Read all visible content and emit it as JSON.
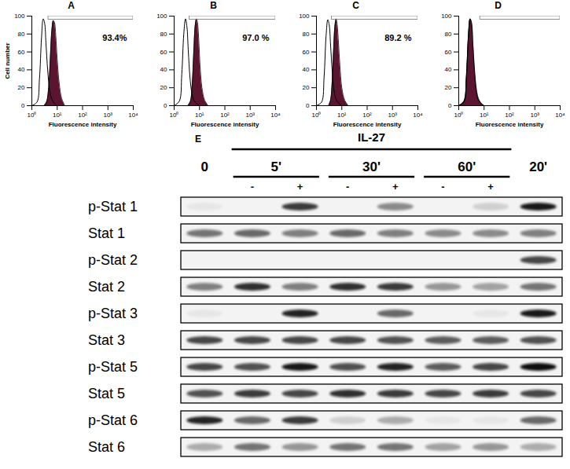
{
  "chart_data": [
    {
      "type": "area",
      "title": "A",
      "log": "x",
      "xlabel": "Fluorescence intensity",
      "ylabel": "Cell number",
      "xlim": [
        1,
        10000
      ],
      "xticks": [
        {
          "value": 1,
          "label": "10⁰"
        },
        {
          "value": 10,
          "label": "10¹"
        },
        {
          "value": 100,
          "label": "10²"
        },
        {
          "value": 1000,
          "label": "10³"
        },
        {
          "value": 10000,
          "label": "10⁴"
        }
      ],
      "ylim": [
        0,
        100
      ],
      "yticks": [
        0,
        20,
        40,
        60,
        80,
        100
      ],
      "annotation": "93.4%",
      "gate": {
        "x": [
          4.5,
          10000
        ],
        "y": [
          96,
          100
        ]
      },
      "series": [
        {
          "type": "area",
          "color": "#5b1530",
          "x": [
            3,
            3.8,
            4.6,
            5.4,
            6.2,
            7,
            7.8,
            8.8,
            10,
            12,
            15,
            20
          ],
          "values": [
            0,
            4,
            20,
            55,
            85,
            95,
            93,
            78,
            52,
            25,
            8,
            0
          ]
        },
        {
          "type": "line",
          "color": "#000000",
          "x": [
            1,
            1.6,
            2,
            2.4,
            2.8,
            3.2,
            3.6,
            4.2,
            5,
            6,
            8,
            10
          ],
          "values": [
            0,
            4,
            30,
            75,
            97,
            92,
            70,
            40,
            18,
            8,
            2,
            0
          ]
        }
      ]
    },
    {
      "type": "area",
      "title": "B",
      "log": "x",
      "xlabel": "Fluorescence intensity",
      "xlim": [
        1,
        10000
      ],
      "xticks": [
        {
          "value": 1,
          "label": "10⁰"
        },
        {
          "value": 10,
          "label": "10¹"
        },
        {
          "value": 100,
          "label": "10²"
        },
        {
          "value": 1000,
          "label": "10³"
        },
        {
          "value": 10000,
          "label": "10⁴"
        }
      ],
      "ylim": [
        0,
        100
      ],
      "yticks": [
        0,
        20,
        40,
        60,
        80,
        100
      ],
      "annotation": "97.0 %",
      "gate": {
        "x": [
          4,
          10000
        ],
        "y": [
          96,
          100
        ]
      },
      "series": [
        {
          "type": "area",
          "color": "#5b1530",
          "x": [
            3.5,
            4.4,
            5.2,
            6,
            6.8,
            7.6,
            8.4,
            9.4,
            10.5,
            12.5,
            16,
            22
          ],
          "values": [
            0,
            5,
            25,
            62,
            90,
            97,
            92,
            72,
            45,
            20,
            6,
            0
          ]
        },
        {
          "type": "line",
          "color": "#000000",
          "x": [
            1,
            1.6,
            2,
            2.4,
            2.8,
            3.2,
            3.6,
            4.2,
            5,
            6,
            8,
            10
          ],
          "values": [
            0,
            5,
            35,
            80,
            97,
            88,
            62,
            32,
            14,
            6,
            2,
            0
          ]
        }
      ]
    },
    {
      "type": "area",
      "title": "C",
      "log": "x",
      "xlabel": "Fluorescence intensity",
      "xlim": [
        1,
        10000
      ],
      "xticks": [
        {
          "value": 1,
          "label": "10⁰"
        },
        {
          "value": 10,
          "label": "10¹"
        },
        {
          "value": 100,
          "label": "10²"
        },
        {
          "value": 1000,
          "label": "10³"
        },
        {
          "value": 10000,
          "label": "10⁴"
        }
      ],
      "ylim": [
        0,
        100
      ],
      "yticks": [
        0,
        20,
        40,
        60,
        80,
        100
      ],
      "annotation": "89.2 %",
      "gate": {
        "x": [
          4,
          10000
        ],
        "y": [
          96,
          100
        ]
      },
      "series": [
        {
          "type": "area",
          "color": "#5b1530",
          "x": [
            3,
            3.6,
            4.2,
            4.8,
            5.4,
            6,
            6.6,
            7.4,
            8.4,
            10,
            13,
            18
          ],
          "values": [
            0,
            6,
            28,
            65,
            90,
            97,
            90,
            70,
            45,
            20,
            6,
            0
          ]
        },
        {
          "type": "line",
          "color": "#000000",
          "x": [
            1,
            1.6,
            2,
            2.4,
            2.8,
            3.2,
            3.6,
            4.2,
            5,
            6,
            8,
            10
          ],
          "values": [
            0,
            4,
            32,
            78,
            96,
            90,
            68,
            38,
            16,
            7,
            2,
            0
          ]
        }
      ]
    },
    {
      "type": "area",
      "title": "D",
      "log": "x",
      "xlabel": "Fluorescence intensity",
      "xlim": [
        1,
        10000
      ],
      "xticks": [
        {
          "value": 1,
          "label": "10⁰"
        },
        {
          "value": 10,
          "label": "10¹"
        },
        {
          "value": 100,
          "label": "10²"
        },
        {
          "value": 1000,
          "label": "10³"
        },
        {
          "value": 10000,
          "label": "10⁴"
        }
      ],
      "ylim": [
        0,
        100
      ],
      "yticks": [
        0,
        20,
        40,
        60,
        80,
        100
      ],
      "gate": {
        "x": [
          7,
          10000
        ],
        "y": [
          96,
          100
        ]
      },
      "series": [
        {
          "type": "area",
          "color": "#5b1530",
          "x": [
            1,
            1.6,
            2,
            2.4,
            2.8,
            3.2,
            3.6,
            4.2,
            5,
            6,
            8,
            10
          ],
          "values": [
            0,
            5,
            33,
            78,
            97,
            93,
            70,
            40,
            18,
            8,
            2,
            0
          ]
        },
        {
          "type": "line",
          "color": "#000000",
          "x": [
            1,
            1.6,
            2,
            2.4,
            2.8,
            3.2,
            3.6,
            4.2,
            5,
            6,
            8,
            10
          ],
          "values": [
            0,
            4,
            30,
            76,
            97,
            90,
            66,
            36,
            15,
            6,
            2,
            0
          ]
        }
      ]
    }
  ],
  "western_blot": {
    "panel": "E",
    "treatment": {
      "label": "IL-27",
      "lanes": [
        1,
        6
      ]
    },
    "time_groups": [
      {
        "label": "0",
        "lanes": [
          0,
          0
        ]
      },
      {
        "label": "5'",
        "lanes": [
          1,
          2
        ]
      },
      {
        "label": "30'",
        "lanes": [
          3,
          4
        ]
      },
      {
        "label": "60'",
        "lanes": [
          5,
          6
        ]
      },
      {
        "label": "20'",
        "lanes": [
          7,
          7
        ]
      }
    ],
    "lane_signs": [
      null,
      "-",
      "+",
      "-",
      "+",
      "-",
      "+",
      null
    ],
    "rows": [
      {
        "label": "p-Stat 1",
        "band_intensity": [
          0.05,
          0,
          0.8,
          0,
          0.45,
          0,
          0.15,
          0.95
        ]
      },
      {
        "label": "Stat 1",
        "band_intensity": [
          0.55,
          0.6,
          0.5,
          0.6,
          0.5,
          0.45,
          0.45,
          0.5
        ]
      },
      {
        "label": "p-Stat 2",
        "band_intensity": [
          0,
          0,
          0,
          0,
          0,
          0,
          0,
          0.75
        ]
      },
      {
        "label": "Stat 2",
        "band_intensity": [
          0.5,
          0.85,
          0.5,
          0.85,
          0.8,
          0.4,
          0.35,
          0.55
        ]
      },
      {
        "label": "p-Stat 3",
        "band_intensity": [
          0.05,
          0,
          0.9,
          0,
          0.6,
          0,
          0.05,
          0.95
        ]
      },
      {
        "label": "Stat 3",
        "band_intensity": [
          0.75,
          0.75,
          0.75,
          0.75,
          0.7,
          0.65,
          0.65,
          0.7
        ]
      },
      {
        "label": "p-Stat 5",
        "band_intensity": [
          0.75,
          0.7,
          0.95,
          0.7,
          0.9,
          0.65,
          0.75,
          1.0
        ]
      },
      {
        "label": "Stat 5",
        "band_intensity": [
          0.7,
          0.8,
          0.75,
          0.85,
          0.8,
          0.75,
          0.8,
          0.75
        ]
      },
      {
        "label": "p-Stat 6",
        "band_intensity": [
          0.9,
          0.6,
          0.8,
          0.15,
          0.3,
          0.05,
          0.05,
          0.6
        ]
      },
      {
        "label": "Stat 6",
        "band_intensity": [
          0.3,
          0.55,
          0.4,
          0.55,
          0.55,
          0.35,
          0.4,
          0.3
        ]
      }
    ]
  }
}
